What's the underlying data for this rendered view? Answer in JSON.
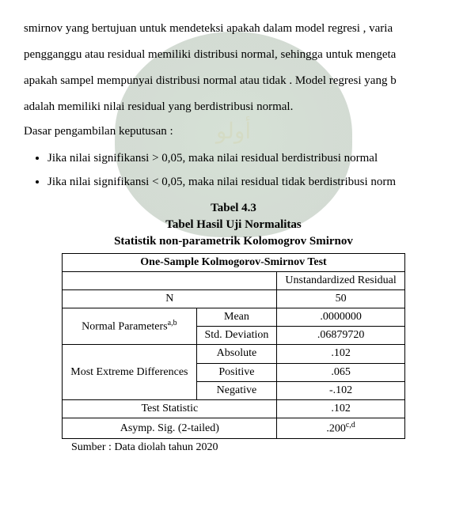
{
  "paragraph": {
    "p1": "smirnov yang bertujuan untuk mendeteksi apakah dalam model regresi , varia",
    "p2": "pengganggu atau residual memiliki distribusi normal, sehingga untuk mengeta",
    "p3": "apakah sampel mempunyai distribusi normal atau tidak . Model regresi yang b",
    "p4": "adalah memiliki nilai residual yang berdistribusi normal.",
    "p5": "Dasar pengambilan keputusan :"
  },
  "bullets": {
    "b1": "Jika  nilai  signifikansi > 0,05, maka nilai residual berdistribusi normal",
    "b2": "Jika nilai signifikansi < 0,05, maka nilai residual tidak berdistribusi norm"
  },
  "caption": {
    "line1": "Tabel 4.3",
    "line2": "Tabel Hasil Uji Normalitas",
    "line3": "Statistik non-parametrik Kolomogrov Smirnov"
  },
  "table": {
    "title": "One-Sample Kolmogorov-Smirnov Test",
    "col_header": "Unstandardized Residual",
    "rows": {
      "n_label": "N",
      "n_val": "50",
      "np_label_pre": "Normal Parameters",
      "np_label_sup": "a,b",
      "mean_label": "Mean",
      "mean_val": ".0000000",
      "std_label": "Std. Deviation",
      "std_val": ".06879720",
      "med_label": "Most Extreme Differences",
      "abs_label": "Absolute",
      "abs_val": ".102",
      "pos_label": "Positive",
      "pos_val": ".065",
      "neg_label": "Negative",
      "neg_val": "-.102",
      "ts_label": "Test Statistic",
      "ts_val": ".102",
      "asymp_label": "Asymp. Sig. (2-tailed)",
      "asymp_val_pre": ".200",
      "asymp_val_sup": "c,d"
    }
  },
  "source": "Sumber : Data diolah tahun 2020"
}
